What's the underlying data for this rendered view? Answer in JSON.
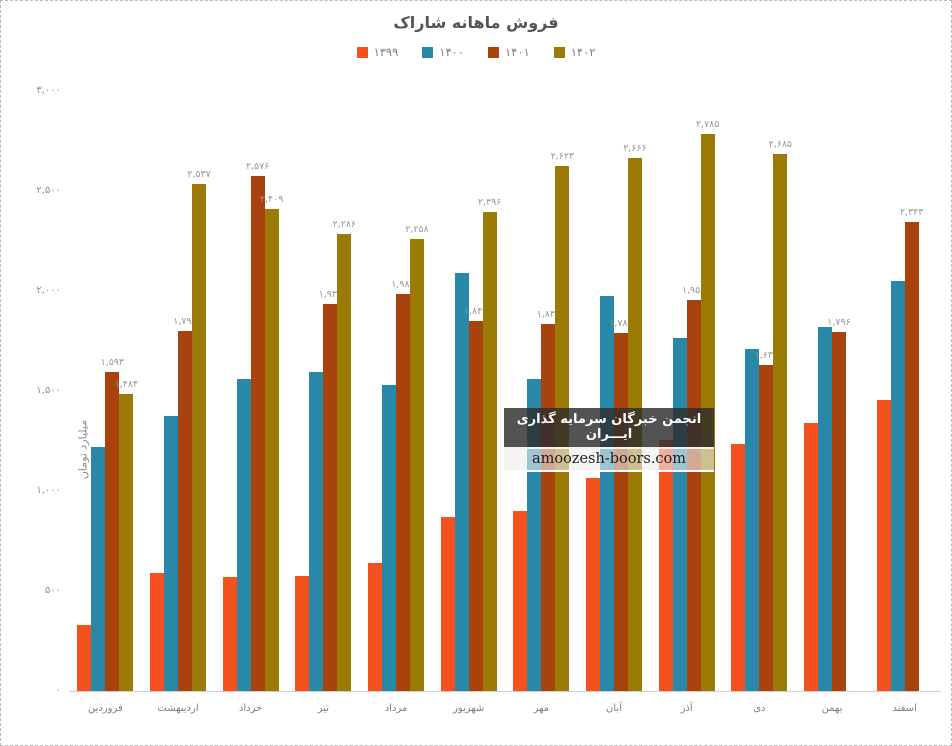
{
  "title": "فروش ماهانه شاراک",
  "watermark": {
    "line1": "انجمن خبرگان سرمایه گذاری ایـــران",
    "line2": "amoozesh-boors.com"
  },
  "chart_data": {
    "type": "bar",
    "title": "فروش ماهانه شاراک",
    "xlabel": "",
    "ylabel": "میلیارد تومان",
    "ylim": [
      0,
      3000
    ],
    "grid": false,
    "legend_position": "top-center",
    "categories": [
      "فروردین",
      "اردیبهشت",
      "خرداد",
      "تیر",
      "مرداد",
      "شهریور",
      "مهر",
      "آبان",
      "آذر",
      "دی",
      "بهمن",
      "اسفند"
    ],
    "y_ticks": [
      {
        "value": 3000,
        "label": "۳,۰۰۰"
      },
      {
        "value": 2500,
        "label": "۲,۵۰۰"
      },
      {
        "value": 2000,
        "label": "۲,۰۰۰"
      },
      {
        "value": 1500,
        "label": "۱,۵۰۰"
      },
      {
        "value": 1000,
        "label": "۱,۰۰۰"
      },
      {
        "value": 500,
        "label": "۵۰۰"
      },
      {
        "value": 0,
        "label": "۰"
      }
    ],
    "series": [
      {
        "name": "۱۳۹۹",
        "color": "#F4511E",
        "values": [
          330,
          590,
          570,
          575,
          640,
          870,
          900,
          1065,
          1255,
          1235,
          1340,
          1455
        ],
        "labels": [
          null,
          null,
          null,
          null,
          null,
          null,
          null,
          null,
          null,
          null,
          null,
          null
        ]
      },
      {
        "name": "۱۴۰۰",
        "color": "#2987A8",
        "values": [
          1220,
          1375,
          1560,
          1595,
          1530,
          2090,
          1560,
          1975,
          1765,
          1710,
          1820,
          2050
        ],
        "labels": [
          null,
          null,
          null,
          null,
          null,
          null,
          null,
          null,
          null,
          null,
          null,
          null
        ]
      },
      {
        "name": "۱۴۰۱",
        "color": "#A8430D",
        "values": [
          1593,
          1798,
          2576,
          1937,
          1987,
          1849,
          1837,
          1789,
          1955,
          1631,
          1796,
          2343
        ],
        "labels": [
          "۱,۵۹۳",
          "۱,۷۹۸",
          "۲,۵۷۶",
          "۱,۹۳۷",
          "۱,۹۸۷",
          "۱,۸۴۹",
          "۱,۸۳۷",
          "۱,۷۸۹",
          "۱,۹۵۵",
          "۱,۶۳۱",
          "۱,۷۹۶",
          "۲,۳۴۳"
        ]
      },
      {
        "name": "۱۴۰۲",
        "color": "#9C7A06",
        "values": [
          1484,
          2537,
          2409,
          2286,
          2258,
          2396,
          2623,
          2666,
          2785,
          2685,
          null,
          null
        ],
        "labels": [
          "۱,۴۸۴",
          "۲,۵۳۷",
          "۲,۴۰۹",
          "۲,۲۸۶",
          "۲,۲۵۸",
          "۲,۳۹۶",
          "۲,۶۲۳",
          "۲,۶۶۶",
          "۲,۷۸۵",
          "۲,۶۸۵",
          null,
          null
        ]
      }
    ]
  }
}
